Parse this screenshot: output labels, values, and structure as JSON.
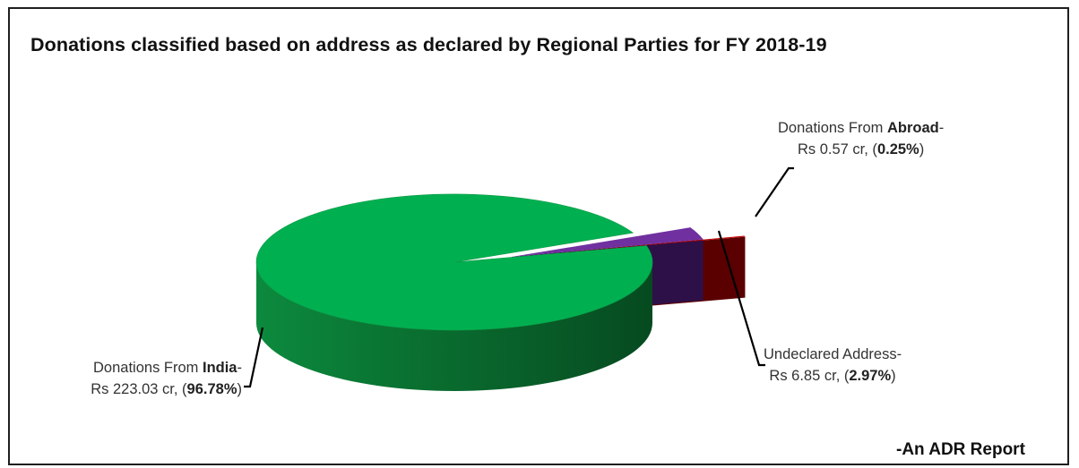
{
  "chart_data": {
    "type": "pie",
    "title": "Donations classified based on address as declared by Regional Parties for FY 2018-19",
    "credit": "-An ADR Report",
    "slices": [
      {
        "key": "india",
        "lead": "Donations From ",
        "bold_name": "India",
        "sep": "-",
        "amount_text": "Rs 223.03 cr, (",
        "pct_text": "96.78%",
        "close": ")",
        "amount_cr": 223.03,
        "percent": 96.78,
        "color": "#00b050",
        "side_color": "#0a7a38",
        "exploded": false
      },
      {
        "key": "undeclared",
        "lead": "",
        "bold_name": "",
        "sep": "Undeclared Address-",
        "amount_text": "Rs 6.85 cr, (",
        "pct_text": "2.97%",
        "close": ")",
        "amount_cr": 6.85,
        "percent": 2.97,
        "color": "#7030a0",
        "side_color": "#2e1048",
        "exploded": true
      },
      {
        "key": "abroad",
        "lead": "Donations From ",
        "bold_name": "Abroad",
        "sep": "-",
        "amount_text": "Rs 0.57 cr, (",
        "pct_text": "0.25%",
        "close": ")",
        "amount_cr": 0.57,
        "percent": 0.25,
        "color": "#c00000",
        "side_color": "#5a0000",
        "exploded": true
      }
    ]
  }
}
